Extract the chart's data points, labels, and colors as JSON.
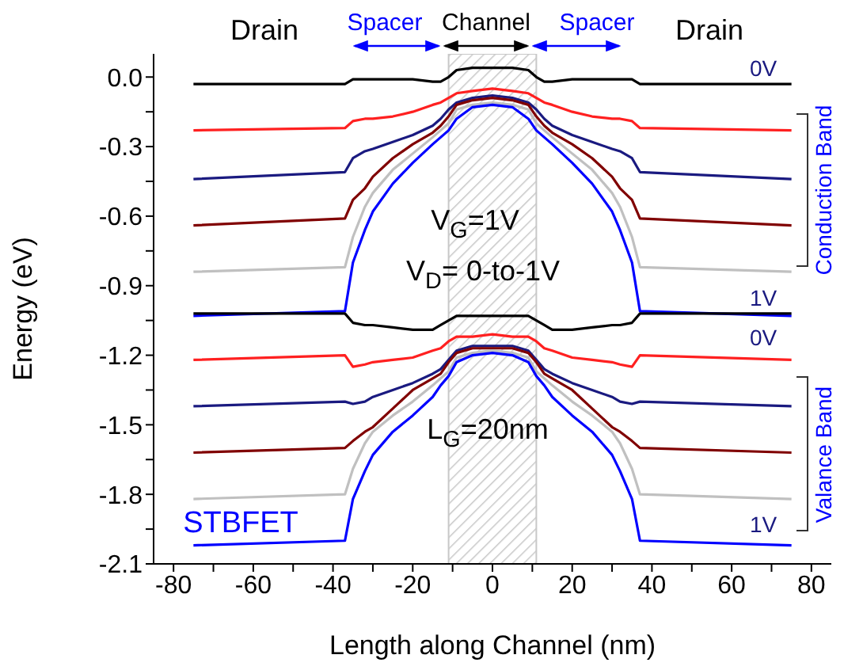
{
  "chart_data": {
    "type": "line",
    "xlabel": "Length along Channel (nm)",
    "ylabel": "Energy (eV)",
    "x": [
      -75,
      -37,
      -35,
      -32,
      -30,
      -25,
      -20,
      -15,
      -13,
      -11,
      -9,
      -5,
      0,
      5,
      9,
      11,
      13,
      15,
      20,
      25,
      30,
      32,
      35,
      37,
      75
    ],
    "series": [
      {
        "color": "#000000",
        "values": [
          -0.03,
          -0.03,
          -0.01,
          -0.01,
          -0.01,
          -0.01,
          -0.01,
          -0.02,
          -0.02,
          0.0,
          0.03,
          0.04,
          0.04,
          0.04,
          0.03,
          0.0,
          -0.02,
          -0.02,
          -0.01,
          -0.01,
          -0.01,
          -0.01,
          -0.01,
          -0.03,
          -0.03
        ]
      },
      {
        "color": "#ff2020",
        "values": [
          -0.23,
          -0.22,
          -0.19,
          -0.18,
          -0.18,
          -0.17,
          -0.15,
          -0.12,
          -0.11,
          -0.09,
          -0.07,
          -0.06,
          -0.05,
          -0.06,
          -0.07,
          -0.09,
          -0.11,
          -0.12,
          -0.15,
          -0.17,
          -0.18,
          -0.18,
          -0.19,
          -0.22,
          -0.23
        ]
      },
      {
        "color": "#1a1a80",
        "values": [
          -0.44,
          -0.41,
          -0.35,
          -0.32,
          -0.31,
          -0.28,
          -0.25,
          -0.21,
          -0.18,
          -0.14,
          -0.11,
          -0.09,
          -0.08,
          -0.09,
          -0.11,
          -0.14,
          -0.18,
          -0.21,
          -0.25,
          -0.28,
          -0.31,
          -0.32,
          -0.35,
          -0.41,
          -0.44
        ]
      },
      {
        "color": "#800000",
        "values": [
          -0.64,
          -0.61,
          -0.53,
          -0.48,
          -0.43,
          -0.35,
          -0.29,
          -0.24,
          -0.21,
          -0.17,
          -0.12,
          -0.1,
          -0.09,
          -0.1,
          -0.12,
          -0.17,
          -0.21,
          -0.24,
          -0.29,
          -0.35,
          -0.43,
          -0.48,
          -0.53,
          -0.61,
          -0.64
        ]
      },
      {
        "color": "#c0c0c0",
        "values": [
          -0.84,
          -0.82,
          -0.69,
          -0.56,
          -0.5,
          -0.4,
          -0.33,
          -0.26,
          -0.23,
          -0.2,
          -0.14,
          -0.12,
          -0.11,
          -0.12,
          -0.14,
          -0.2,
          -0.23,
          -0.26,
          -0.33,
          -0.4,
          -0.5,
          -0.56,
          -0.69,
          -0.82,
          -0.84
        ]
      },
      {
        "color": "#0000ff",
        "values": [
          -1.03,
          -1.01,
          -0.8,
          -0.66,
          -0.58,
          -0.46,
          -0.37,
          -0.29,
          -0.26,
          -0.23,
          -0.18,
          -0.13,
          -0.12,
          -0.13,
          -0.18,
          -0.23,
          -0.26,
          -0.29,
          -0.37,
          -0.46,
          -0.58,
          -0.66,
          -0.8,
          -1.01,
          -1.03
        ]
      },
      {
        "color": "#000000",
        "values": [
          -1.02,
          -1.02,
          -1.06,
          -1.07,
          -1.07,
          -1.08,
          -1.09,
          -1.09,
          -1.07,
          -1.05,
          -1.03,
          -1.03,
          -1.03,
          -1.03,
          -1.03,
          -1.05,
          -1.07,
          -1.09,
          -1.09,
          -1.08,
          -1.07,
          -1.07,
          -1.06,
          -1.02,
          -1.02
        ]
      },
      {
        "color": "#ff2020",
        "values": [
          -1.22,
          -1.2,
          -1.25,
          -1.24,
          -1.23,
          -1.22,
          -1.21,
          -1.18,
          -1.17,
          -1.14,
          -1.12,
          -1.12,
          -1.11,
          -1.12,
          -1.12,
          -1.14,
          -1.17,
          -1.18,
          -1.21,
          -1.22,
          -1.23,
          -1.24,
          -1.25,
          -1.2,
          -1.22
        ]
      },
      {
        "color": "#1a1a80",
        "values": [
          -1.42,
          -1.4,
          -1.41,
          -1.4,
          -1.38,
          -1.35,
          -1.32,
          -1.28,
          -1.26,
          -1.22,
          -1.18,
          -1.16,
          -1.16,
          -1.16,
          -1.18,
          -1.22,
          -1.26,
          -1.28,
          -1.32,
          -1.35,
          -1.38,
          -1.4,
          -1.41,
          -1.4,
          -1.42
        ]
      },
      {
        "color": "#800000",
        "values": [
          -1.62,
          -1.6,
          -1.57,
          -1.53,
          -1.51,
          -1.43,
          -1.35,
          -1.3,
          -1.28,
          -1.23,
          -1.19,
          -1.17,
          -1.17,
          -1.17,
          -1.19,
          -1.23,
          -1.28,
          -1.3,
          -1.35,
          -1.43,
          -1.51,
          -1.53,
          -1.57,
          -1.6,
          -1.62
        ]
      },
      {
        "color": "#c0c0c0",
        "values": [
          -1.82,
          -1.8,
          -1.69,
          -1.58,
          -1.53,
          -1.46,
          -1.4,
          -1.33,
          -1.3,
          -1.27,
          -1.21,
          -1.19,
          -1.18,
          -1.19,
          -1.21,
          -1.27,
          -1.3,
          -1.33,
          -1.4,
          -1.46,
          -1.53,
          -1.58,
          -1.69,
          -1.8,
          -1.82
        ]
      },
      {
        "color": "#0000ff",
        "values": [
          -2.02,
          -2.0,
          -1.82,
          -1.7,
          -1.63,
          -1.53,
          -1.46,
          -1.38,
          -1.33,
          -1.29,
          -1.23,
          -1.2,
          -1.19,
          -1.2,
          -1.23,
          -1.29,
          -1.33,
          -1.38,
          -1.46,
          -1.53,
          -1.63,
          -1.7,
          -1.82,
          -2.0,
          -2.02
        ]
      }
    ],
    "xlim": [
      -85,
      85
    ],
    "xticks": [
      -80,
      {
        "value": -70,
        "label": null
      },
      -60,
      {
        "value": -50,
        "label": null
      },
      -40,
      {
        "value": -30,
        "label": null
      },
      -20,
      {
        "value": -10,
        "label": null
      },
      0,
      {
        "value": 10,
        "label": null
      },
      20,
      {
        "value": 30,
        "label": null
      },
      40,
      {
        "value": 50,
        "label": null
      },
      60,
      {
        "value": 70,
        "label": null
      },
      80
    ],
    "ylim": [
      -2.1,
      0.1
    ],
    "yticks": [
      {
        "value": 0,
        "label": "0.0"
      },
      {
        "value": -0.15,
        "label": null
      },
      -0.3,
      {
        "value": -0.45,
        "label": null
      },
      -0.6,
      {
        "value": -0.75,
        "label": null
      },
      -0.9,
      {
        "value": -1.05,
        "label": null
      },
      -1.2,
      {
        "value": -1.35,
        "label": null
      },
      -1.5,
      {
        "value": -1.65,
        "label": null
      },
      -1.8,
      {
        "value": -1.95,
        "label": null
      },
      -2.1
    ],
    "bands": [
      {
        "axis": "x",
        "from": -11,
        "to": 11,
        "color": "#c8c8c8"
      }
    ],
    "grid": false,
    "legend": false,
    "marker": "none",
    "line_style": "solid",
    "annotations": [
      "Drain",
      "Spacer",
      "Channel",
      "Spacer",
      "Drain",
      "0V",
      "1V",
      "0V",
      "1V",
      "Conduction Band",
      "Valance Band",
      "V$_{G}$=1V",
      "V$_{D}$= 0-to-1V",
      "L$_{G}$=20nm",
      "STBFET"
    ]
  }
}
